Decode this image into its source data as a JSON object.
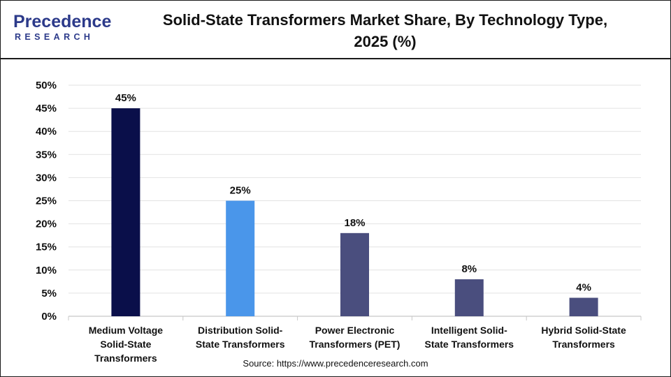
{
  "header": {
    "logo_text": "Precedence",
    "logo_subtext": "RESEARCH",
    "title_line1": "Solid-State Transformers Market Share, By Technology Type,",
    "title_line2": "2025 (%)"
  },
  "footer": {
    "source": "Source: https://www.precedenceresearch.com"
  },
  "chart_data": {
    "type": "bar",
    "title": "Solid-State Transformers Market Share, By Technology Type, 2025 (%)",
    "categories": [
      "Medium Voltage Solid-State Transformers",
      "Distribution Solid-State Transformers",
      "Power Electronic Transformers (PET)",
      "Intelligent Solid-State Transformers",
      "Hybrid Solid-State Transformers"
    ],
    "category_lines": [
      [
        "Medium Voltage",
        "Solid-State",
        "Transformers"
      ],
      [
        "Distribution Solid-",
        "State Transformers"
      ],
      [
        "Power Electronic",
        "Transformers (PET)"
      ],
      [
        "Intelligent Solid-",
        "State Transformers"
      ],
      [
        "Hybrid Solid-State",
        "Transformers"
      ]
    ],
    "values": [
      45,
      25,
      18,
      8,
      4
    ],
    "data_labels": [
      "45%",
      "25%",
      "18%",
      "8%",
      "4%"
    ],
    "colors": [
      "#0a0f4a",
      "#4a96ea",
      "#4a4e7e",
      "#4a4e7e",
      "#4a4e7e"
    ],
    "ylim": [
      0,
      50
    ],
    "yticks": [
      0,
      5,
      10,
      15,
      20,
      25,
      30,
      35,
      40,
      45,
      50
    ],
    "ytick_labels": [
      "0%",
      "5%",
      "10%",
      "15%",
      "20%",
      "25%",
      "30%",
      "35%",
      "40%",
      "45%",
      "50%"
    ],
    "xlabel": "",
    "ylabel": "",
    "grid": true,
    "legend": false
  }
}
